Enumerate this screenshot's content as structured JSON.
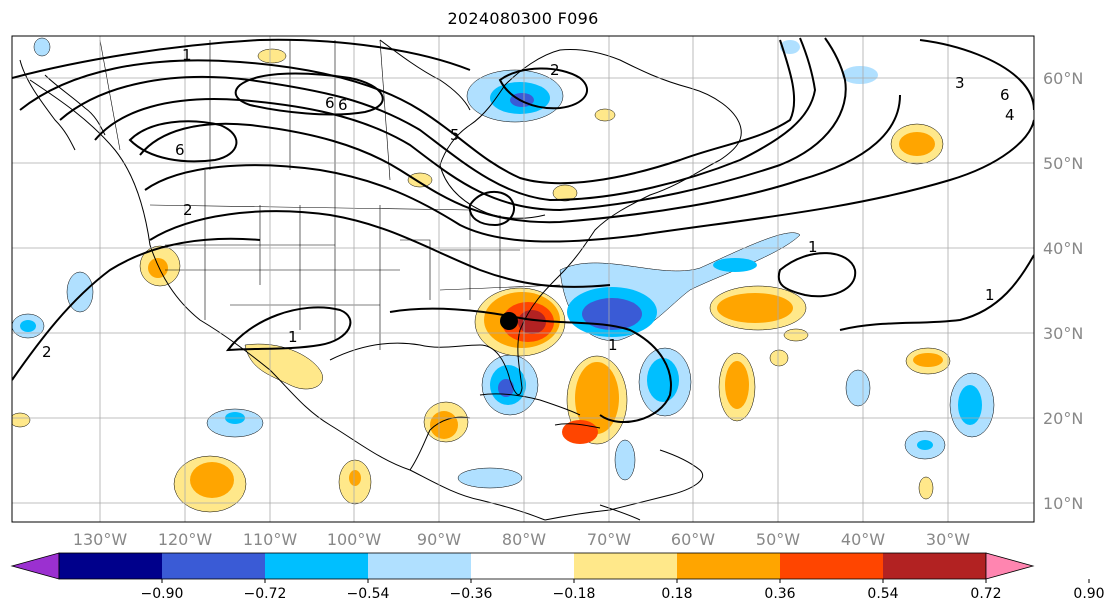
{
  "title": "2024080300 F096",
  "longitude_labels": [
    "130°W",
    "120°W",
    "110°W",
    "100°W",
    "90°W",
    "80°W",
    "70°W",
    "60°W",
    "50°W",
    "40°W",
    "30°W"
  ],
  "latitude_labels": [
    "60°N",
    "50°N",
    "40°N",
    "30°N",
    "20°N",
    "10°N"
  ],
  "colorbar": {
    "tick_labels": [
      "−0.90",
      "−0.72",
      "−0.54",
      "−0.36",
      "−0.18",
      "0.18",
      "0.36",
      "0.54",
      "0.72",
      "0.90"
    ],
    "colors": [
      "#9b30d0",
      "#00008b",
      "#3a5bd6",
      "#00bfff",
      "#b0e0ff",
      "#ffffff",
      "#ffe88a",
      "#ffa500",
      "#ff4500",
      "#b22222",
      "#ff85b0"
    ]
  },
  "contour_labels": [
    "1",
    "6",
    "6",
    "6",
    "5",
    "2",
    "1",
    "2",
    "1",
    "1",
    "1",
    "2",
    "3",
    "4",
    "6"
  ],
  "marker": "storm-center"
}
